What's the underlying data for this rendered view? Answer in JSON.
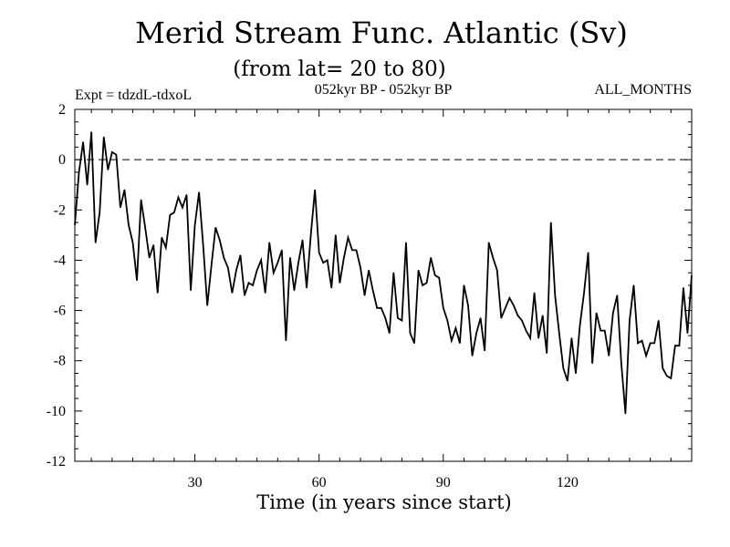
{
  "chart_data": {
    "type": "line",
    "title": "Merid Stream Func. Atlantic (Sv)",
    "subtitle": "(from lat= 20 to 80)",
    "experiment": "Expt = tdzdL-tdxoL",
    "period": "052kyr BP - 052kyr BP",
    "months": "ALL_MONTHS",
    "xlabel": "Time (in years since start)",
    "ylabel": "",
    "xlim": [
      1,
      150
    ],
    "ylim": [
      -12,
      2
    ],
    "xticks": [
      30,
      60,
      90,
      120
    ],
    "yticks": [
      2,
      0,
      -2,
      -4,
      -6,
      -8,
      -10,
      -12
    ],
    "reference_line": {
      "y": 0,
      "style": "dashed"
    },
    "series": [
      {
        "name": "Merid Stream Func",
        "x": [
          1,
          2,
          3,
          4,
          5,
          6,
          7,
          8,
          9,
          10,
          11,
          12,
          13,
          14,
          15,
          16,
          17,
          18,
          19,
          20,
          21,
          22,
          23,
          24,
          25,
          26,
          27,
          28,
          29,
          30,
          31,
          32,
          33,
          34,
          35,
          36,
          37,
          38,
          39,
          40,
          41,
          42,
          43,
          44,
          45,
          46,
          47,
          48,
          49,
          50,
          51,
          52,
          53,
          54,
          55,
          56,
          57,
          58,
          59,
          60,
          61,
          62,
          63,
          64,
          65,
          66,
          67,
          68,
          69,
          70,
          71,
          72,
          73,
          74,
          75,
          76,
          77,
          78,
          79,
          80,
          81,
          82,
          83,
          84,
          85,
          86,
          87,
          88,
          89,
          90,
          91,
          92,
          93,
          94,
          95,
          96,
          97,
          98,
          99,
          100,
          101,
          102,
          103,
          104,
          105,
          106,
          107,
          108,
          109,
          110,
          111,
          112,
          113,
          114,
          115,
          116,
          117,
          118,
          119,
          120,
          121,
          122,
          123,
          124,
          125,
          126,
          127,
          128,
          129,
          130,
          131,
          132,
          133,
          134,
          135,
          136,
          137,
          138,
          139,
          140,
          141,
          142,
          143,
          144,
          145,
          146,
          147,
          148,
          149,
          150
        ],
        "y": [
          -2.6,
          -0.5,
          0.7,
          -1.0,
          1.1,
          -3.3,
          -2.1,
          0.9,
          -0.4,
          0.3,
          0.2,
          -1.9,
          -1.2,
          -2.6,
          -3.3,
          -4.8,
          -1.6,
          -2.7,
          -3.9,
          -3.4,
          -5.3,
          -3.1,
          -3.5,
          -2.2,
          -2.1,
          -1.5,
          -1.9,
          -1.4,
          -5.2,
          -2.6,
          -1.3,
          -3.4,
          -5.8,
          -4.2,
          -2.7,
          -3.2,
          -3.9,
          -4.3,
          -5.3,
          -4.4,
          -3.8,
          -5.4,
          -4.9,
          -5.0,
          -4.4,
          -4.0,
          -5.3,
          -3.3,
          -4.5,
          -4.1,
          -3.6,
          -7.2,
          -3.9,
          -5.2,
          -4.1,
          -3.2,
          -5.1,
          -3.0,
          -1.2,
          -3.7,
          -4.1,
          -4.0,
          -5.1,
          -3.0,
          -4.9,
          -3.9,
          -3.1,
          -3.6,
          -3.6,
          -4.3,
          -5.4,
          -4.4,
          -5.2,
          -5.9,
          -5.9,
          -6.3,
          -6.9,
          -4.5,
          -6.3,
          -6.4,
          -3.3,
          -6.9,
          -7.3,
          -4.4,
          -5.0,
          -4.9,
          -3.9,
          -4.6,
          -4.7,
          -5.9,
          -6.4,
          -7.2,
          -6.7,
          -7.3,
          -5.0,
          -5.8,
          -7.8,
          -6.9,
          -6.3,
          -7.6,
          -3.3,
          -3.9,
          -4.4,
          -6.3,
          -5.9,
          -5.5,
          -5.8,
          -6.2,
          -6.4,
          -6.8,
          -7.1,
          -5.3,
          -7.1,
          -6.2,
          -7.7,
          -2.5,
          -5.4,
          -6.9,
          -8.3,
          -8.8,
          -7.1,
          -8.5,
          -6.6,
          -5.3,
          -3.7,
          -8.1,
          -6.1,
          -6.8,
          -6.8,
          -7.8,
          -6.1,
          -5.4,
          -8.1,
          -10.1,
          -6.4,
          -5.0,
          -7.3,
          -7.2,
          -7.8,
          -7.3,
          -7.3,
          -6.4,
          -8.3,
          -8.6,
          -8.7,
          -7.4,
          -7.4,
          -5.1,
          -6.9,
          -4.6
        ]
      }
    ]
  }
}
